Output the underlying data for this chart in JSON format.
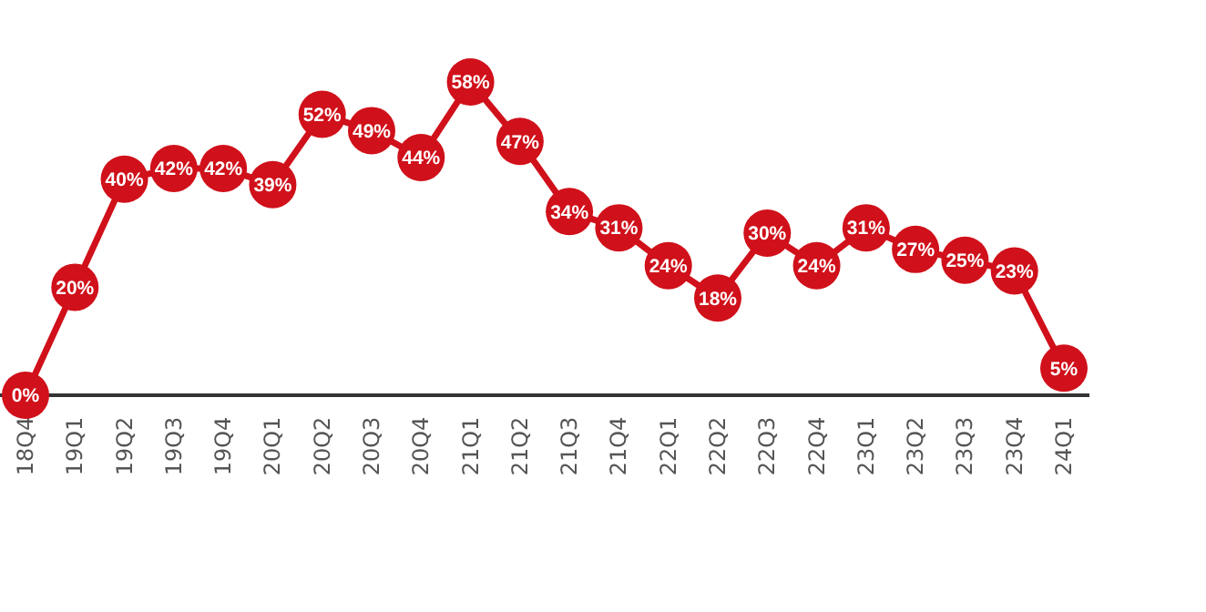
{
  "chart_data": {
    "type": "line",
    "categories": [
      "18Q4",
      "19Q1",
      "19Q2",
      "19Q3",
      "19Q4",
      "20Q1",
      "20Q2",
      "20Q3",
      "20Q4",
      "21Q1",
      "21Q2",
      "21Q3",
      "21Q4",
      "22Q1",
      "22Q2",
      "22Q3",
      "22Q4",
      "23Q1",
      "23Q2",
      "23Q3",
      "23Q4",
      "24Q1"
    ],
    "series": [
      {
        "color": "#d0101a",
        "values": [
          0,
          20,
          40,
          42,
          42,
          39,
          52,
          49,
          44,
          58,
          47,
          34,
          31,
          24,
          18,
          30,
          24,
          31,
          27,
          25,
          23,
          5
        ],
        "value_labels": [
          "0%",
          "20%",
          "40%",
          "42%",
          "42%",
          "39%",
          "52%",
          "49%",
          "44%",
          "58%",
          "47%",
          "34%",
          "31%",
          "24%",
          "18%",
          "30%",
          "24%",
          "31%",
          "27%",
          "25%",
          "23%",
          "5%"
        ]
      }
    ],
    "marker": "circle",
    "line_style": "solid",
    "tick_labels": "x"
  }
}
